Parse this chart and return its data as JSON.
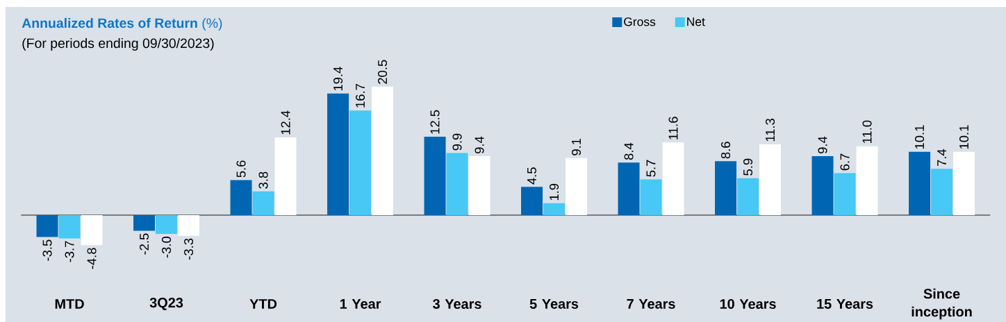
{
  "chart_data": {
    "type": "bar",
    "title": "**Annualized Rates of Return** (%)",
    "subtitle": "(For periods ending 09/30/2023)",
    "categories": [
      "MTD",
      "3Q23",
      "YTD",
      "1 Year",
      "3 Years",
      "5 Years",
      "7 Years",
      "10 Years",
      "15 Years",
      "Since inception"
    ],
    "series": [
      {
        "name": "Gross",
        "color": "#0066b3",
        "values": [
          -3.5,
          -2.5,
          5.6,
          19.4,
          12.5,
          4.5,
          8.4,
          8.6,
          9.4,
          10.1
        ],
        "value_labels": [
          "-3.5",
          "-2.5",
          "5.6",
          "19.4",
          "12.5",
          "4.5",
          "8.4",
          "8.6",
          "9.4",
          "10.1"
        ]
      },
      {
        "name": "Net",
        "color": "#47c8f5",
        "values": [
          -3.7,
          -3.0,
          3.8,
          16.7,
          9.9,
          1.9,
          5.7,
          5.9,
          6.7,
          7.4
        ],
        "value_labels": [
          "-3.7",
          "-3.0",
          "3.8",
          "16.7",
          "9.9",
          "1.9",
          "5.7",
          "5.9",
          "6.7",
          "7.4"
        ]
      },
      {
        "color": "#ffffff",
        "values": [
          -4.8,
          -3.3,
          12.4,
          20.5,
          9.4,
          9.1,
          11.6,
          11.3,
          11.0,
          10.1
        ],
        "value_labels": [
          "-4.8",
          "-3.3",
          "12.4",
          "20.5",
          "9.4",
          "9.1",
          "11.6",
          "11.3",
          "11.0",
          "10.1"
        ]
      }
    ],
    "legend": "top right"
  }
}
